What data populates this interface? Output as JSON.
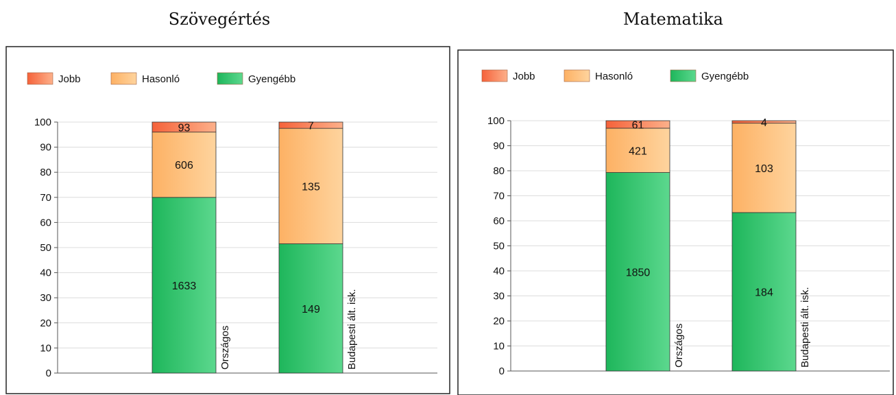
{
  "headings": [
    "Szövegértés",
    "Matematika"
  ],
  "legend": [
    "Jobb",
    "Hasonló",
    "Gyengébb"
  ],
  "colors": {
    "Jobb": [
      "#f5623a",
      "#fdb08a"
    ],
    "Hasonló": [
      "#fdb164",
      "#fed49e"
    ],
    "Gyengébb": [
      "#1eb65b",
      "#5cd88e"
    ]
  },
  "chart_data": [
    {
      "type": "bar",
      "stacked": true,
      "title": "Szövegértés",
      "categories": [
        "Országos",
        "Budapesti ált. isk."
      ],
      "ylim": [
        0,
        100
      ],
      "yticks": [
        0,
        10,
        20,
        30,
        40,
        50,
        60,
        70,
        80,
        90,
        100
      ],
      "grid": true,
      "legend_position": "top-left",
      "series": [
        {
          "name": "Gyengébb",
          "percent": [
            70,
            51.5
          ],
          "labels": [
            "1633",
            "149"
          ]
        },
        {
          "name": "Hasonló",
          "percent": [
            26,
            46
          ],
          "labels": [
            "606",
            "135"
          ]
        },
        {
          "name": "Jobb",
          "percent": [
            4,
            2.5
          ],
          "labels": [
            "93",
            "7"
          ]
        }
      ]
    },
    {
      "type": "bar",
      "stacked": true,
      "title": "Matematika",
      "categories": [
        "Országos",
        "Budapesti ált. isk."
      ],
      "ylim": [
        0,
        100
      ],
      "yticks": [
        0,
        10,
        20,
        30,
        40,
        50,
        60,
        70,
        80,
        90,
        100
      ],
      "grid": true,
      "legend_position": "top-left",
      "series": [
        {
          "name": "Gyengébb",
          "percent": [
            79.3,
            63.3
          ],
          "labels": [
            "1850",
            "184"
          ]
        },
        {
          "name": "Hasonló",
          "percent": [
            17.7,
            35.7
          ],
          "labels": [
            "421",
            "103"
          ]
        },
        {
          "name": "Jobb",
          "percent": [
            3,
            1
          ],
          "labels": [
            "61",
            "4"
          ]
        }
      ]
    }
  ]
}
